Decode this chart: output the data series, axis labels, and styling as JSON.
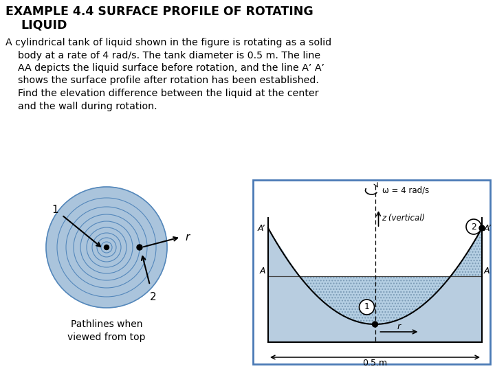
{
  "title_line1": "EXAMPLE 4.4 SURFACE PROFILE OF ROTATING",
  "title_line2": "LIQUID",
  "bg_color": "#ffffff",
  "panel_border": "#4a7ab5",
  "liquid_color": "#b8cde0",
  "hatch_color": "#9aafc0",
  "title_color": "#000000",
  "text_color": "#000000",
  "circle_fill": "#aac4dc",
  "circle_edge": "#5588bb",
  "omega_label": "ω = 4 rad/s",
  "z_label": "z (vertical)",
  "r_label": "r",
  "width_label": "0.5.m",
  "pathlines_label": "Pathlines when\nviewed from top",
  "body_lines": [
    "A cylindrical tank of liquid shown in the figure is rotating as a solid",
    "    body at a rate of 4 rad/s. The tank diameter is 0.5 m. The line",
    "    AA depicts the liquid surface before rotation, and the line A’ A’",
    "    shows the surface profile after rotation has been established.",
    "    Find the elevation difference between the liquid at the center",
    "    and the wall during rotation."
  ]
}
